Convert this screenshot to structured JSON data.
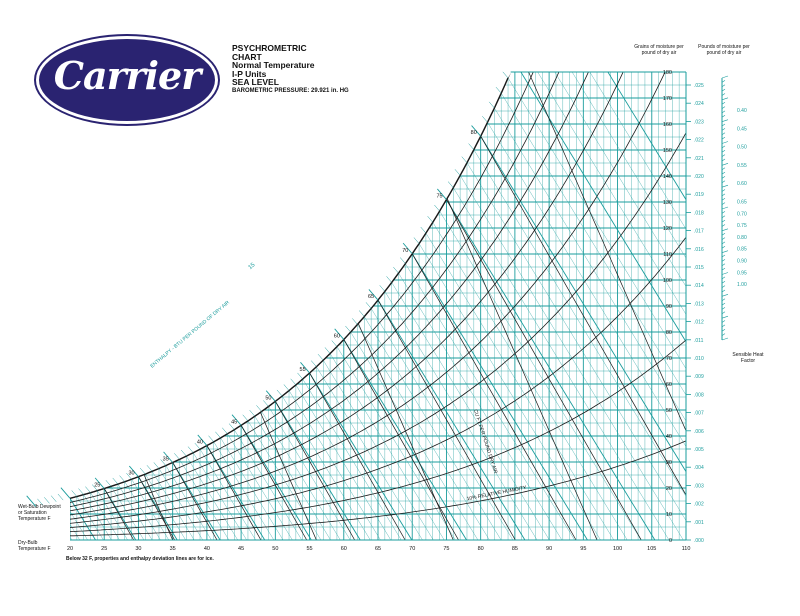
{
  "brand": {
    "logo_text": "Carrier",
    "logo_color": "#2a2371"
  },
  "title_lines": [
    "PSYCHROMETRIC",
    "CHART",
    "Normal Temperature",
    "I-P Units",
    "SEA LEVEL"
  ],
  "pressure_label": "BAROMETRIC PRESSURE: 29.921 in. HG",
  "headers": {
    "grains": "Grains of moisture per pound of dry air",
    "pounds": "Pounds of moisture per pound of dry air"
  },
  "left_labels": {
    "wet_bulb": "Wet-Bulb Dewpoint or Saturation Temperature F",
    "dry_bulb": "Dry-Bulb Temperature F"
  },
  "shf_label": "Sensible Heat Factor",
  "footnote": "Below 32 F, properties and enthalpy deviation lines are for ice.",
  "enthalpy_axis_label": "ENTHALPY - BTU PER POUND OF DRY AIR",
  "colors": {
    "grid": "#1a9c9c",
    "dark_lines": "#1a1a1a",
    "text": "#111111"
  },
  "chart_data": {
    "type": "line",
    "title": "PSYCHROMETRIC CHART",
    "xlabel": "Dry-Bulb Temperature F",
    "ylabel": "Grains of moisture per pound of dry air",
    "xlim": [
      20,
      110
    ],
    "ylim": [
      0,
      180
    ],
    "x_ticks": [
      20,
      25,
      30,
      35,
      40,
      45,
      50,
      55,
      60,
      65,
      70,
      75,
      80,
      85,
      90,
      95,
      100,
      105,
      110
    ],
    "grains_ticks": [
      0,
      10,
      20,
      30,
      40,
      50,
      60,
      70,
      80,
      90,
      100,
      110,
      120,
      130,
      140,
      150,
      160,
      170,
      180
    ],
    "pounds_ticks": [
      ".000",
      ".001",
      ".002",
      ".003",
      ".004",
      ".005",
      ".006",
      ".007",
      ".008",
      ".009",
      ".010",
      ".011",
      ".012",
      ".013",
      ".014",
      ".015",
      ".016",
      ".017",
      ".018",
      ".019",
      ".020",
      ".021",
      ".022",
      ".023",
      ".024",
      ".025"
    ],
    "shf_ticks": [
      "0.40",
      "0.45",
      "0.50",
      "0.55",
      "0.60",
      "0.65",
      "0.70",
      "0.75",
      "0.80",
      "0.85",
      "0.90",
      "0.95",
      "1.00"
    ],
    "saturation_temp_labels": [
      25,
      30,
      35,
      40,
      45,
      50,
      55,
      60,
      65,
      70,
      75,
      80
    ],
    "enthalpy_labels": [
      10,
      15,
      20,
      25,
      30,
      35,
      40,
      45
    ],
    "relative_humidity_label": "10% RELATIVE HUMIDITY",
    "relative_humidity_curves_percent": [
      10,
      20,
      30,
      40,
      50,
      60,
      70,
      80,
      90,
      100
    ],
    "wet_bulb_lines_F": [
      25,
      30,
      35,
      40,
      45,
      50,
      55,
      60,
      65,
      70,
      75,
      80
    ],
    "volume_lines_cuft_per_lb": [
      12.5,
      13.0,
      13.5,
      14.0,
      14.5
    ],
    "volume_axis_label": "CU FT PER POUND DRY AIR",
    "pressure_inHg": 29.921
  }
}
